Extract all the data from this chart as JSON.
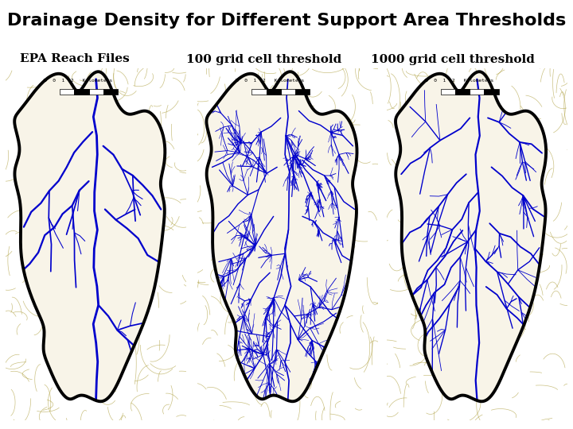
{
  "title": "Drainage Density for Different Support Area Thresholds",
  "title_fontsize": 16,
  "title_fontweight": "bold",
  "bg_color": "#ffffff",
  "panel_bg_inside": "#f8f4e8",
  "panel_bg_outside": "#e8e0c0",
  "contour_color": "#a89830",
  "boundary_color": "#000000",
  "boundary_lw": 2.8,
  "stream_color": "#0000cc",
  "labels": [
    "EPA Reach Files",
    "100 grid cell threshold",
    "1000 grid cell threshold"
  ],
  "label_fontsize": 11,
  "fig_width": 7.2,
  "fig_height": 5.4,
  "dpi": 100
}
